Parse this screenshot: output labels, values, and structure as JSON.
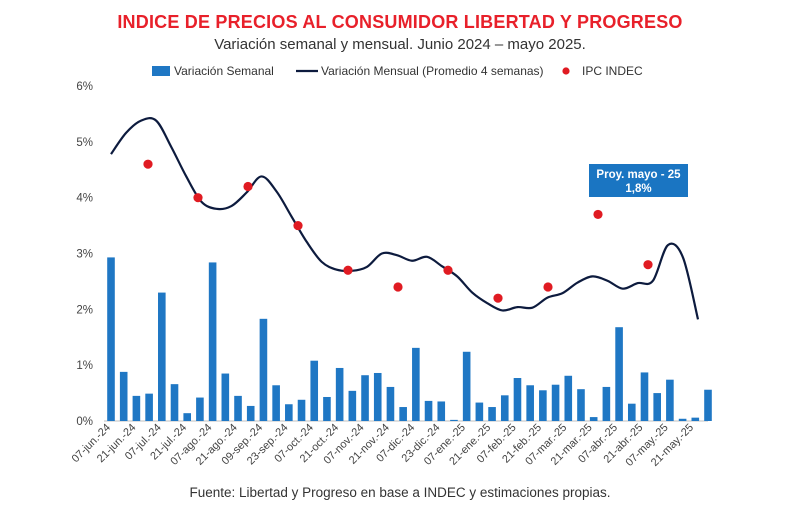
{
  "chart_data": {
    "type": "bar",
    "title": "INDICE DE PRECIOS AL CONSUMIDOR LIBERTAD Y PROGRESO",
    "subtitle": "Variación semanal y mensual. Junio 2024 – mayo 2025.",
    "source": "Fuente: Libertad y Progreso en base a INDEC y estimaciones propias.",
    "y_ticks": [
      "0%",
      "1%",
      "2%",
      "3%",
      "4%",
      "5%",
      "6%"
    ],
    "ylim": [
      0,
      6
    ],
    "grid": false,
    "legend_position": "top",
    "x_tick_labels": [
      "07-jun.-24",
      "21-jun.-24",
      "07-jul.-24",
      "21-jul.-24",
      "07-ago.-24",
      "21-ago.-24",
      "09-sep.-24",
      "23-sep.-24",
      "07-oct.-24",
      "21-oct.-24",
      "07-nov.-24",
      "21-nov.-24",
      "07-dic.-24",
      "23-dic.-24",
      "07-ene.-25",
      "21-ene.-25",
      "07-feb.-25",
      "21-feb.-25",
      "07-mar.-25",
      "21-mar.-25",
      "07-abr.-25",
      "21-abr.-25",
      "07-may.-25",
      "21-may.-25"
    ],
    "series": [
      {
        "name": "Variación Semanal",
        "type": "bar",
        "color": "#1f77c4",
        "values": [
          2.93,
          0.88,
          0.45,
          0.49,
          2.3,
          0.66,
          0.14,
          0.42,
          2.84,
          0.85,
          0.45,
          0.27,
          1.83,
          0.64,
          0.3,
          0.38,
          1.08,
          0.43,
          0.95,
          0.54,
          0.82,
          0.86,
          0.61,
          0.25,
          1.31,
          0.36,
          0.35,
          0.02,
          1.24,
          0.33,
          0.25,
          0.46,
          0.77,
          0.64,
          0.55,
          0.65,
          0.81,
          0.57,
          0.07,
          0.61,
          1.68,
          0.31,
          0.87,
          0.5,
          0.74,
          0.04,
          0.06,
          0.56
        ]
      },
      {
        "name": "Variación Mensual (Promedio 4 semanas)",
        "type": "line",
        "color": "#0d1b3e",
        "values": [
          4.78,
          5.16,
          5.38,
          5.38,
          4.91,
          4.38,
          3.93,
          3.8,
          3.85,
          4.09,
          4.38,
          4.11,
          3.66,
          3.21,
          2.85,
          2.71,
          2.69,
          2.76,
          3.0,
          2.97,
          2.87,
          2.94,
          2.77,
          2.59,
          2.3,
          2.11,
          1.98,
          2.04,
          2.03,
          2.21,
          2.29,
          2.48,
          2.59,
          2.51,
          2.37,
          2.47,
          2.51,
          3.15,
          2.93,
          1.82
        ]
      },
      {
        "name": "IPC INDEC",
        "type": "scatter",
        "color": "#e01b22",
        "values": [
          4.6,
          4.0,
          4.2,
          3.5,
          2.7,
          2.4,
          2.7,
          2.2,
          2.4,
          3.7,
          2.8
        ]
      }
    ],
    "annotation": {
      "line1": "Proy. mayo - 25",
      "line2": "1,8%",
      "color": "#1a75c2"
    }
  }
}
